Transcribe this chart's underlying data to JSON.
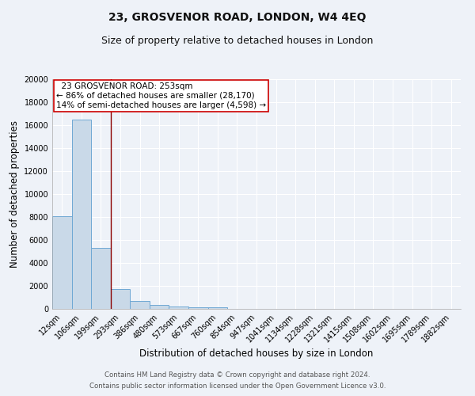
{
  "title": "23, GROSVENOR ROAD, LONDON, W4 4EQ",
  "subtitle": "Size of property relative to detached houses in London",
  "xlabel": "Distribution of detached houses by size in London",
  "ylabel": "Number of detached properties",
  "footnote1": "Contains HM Land Registry data © Crown copyright and database right 2024.",
  "footnote2": "Contains public sector information licensed under the Open Government Licence v3.0.",
  "bin_labels": [
    "12sqm",
    "106sqm",
    "199sqm",
    "293sqm",
    "386sqm",
    "480sqm",
    "573sqm",
    "667sqm",
    "760sqm",
    "854sqm",
    "947sqm",
    "1041sqm",
    "1134sqm",
    "1228sqm",
    "1321sqm",
    "1415sqm",
    "1508sqm",
    "1602sqm",
    "1695sqm",
    "1789sqm",
    "1882sqm"
  ],
  "bar_heights": [
    8100,
    16500,
    5300,
    1750,
    700,
    350,
    220,
    170,
    130,
    0,
    0,
    0,
    0,
    0,
    0,
    0,
    0,
    0,
    0,
    0,
    0
  ],
  "bar_color": "#c9d9e8",
  "bar_edge_color": "#6fa8d4",
  "bar_edge_width": 0.7,
  "vline_x": 2.5,
  "vline_color": "#8b0000",
  "annotation_text": "  23 GROSVENOR ROAD: 253sqm\n← 86% of detached houses are smaller (28,170)\n14% of semi-detached houses are larger (4,598) →",
  "annotation_box_color": "#ffffff",
  "annotation_box_edge": "#cc0000",
  "ylim": [
    0,
    20000
  ],
  "yticks": [
    0,
    2000,
    4000,
    6000,
    8000,
    10000,
    12000,
    14000,
    16000,
    18000,
    20000
  ],
  "bg_color": "#eef2f8",
  "grid_color": "#ffffff",
  "title_fontsize": 10,
  "subtitle_fontsize": 9,
  "axis_label_fontsize": 8.5,
  "tick_fontsize": 7,
  "annotation_fontsize": 7.5,
  "footnote_fontsize": 6.2
}
